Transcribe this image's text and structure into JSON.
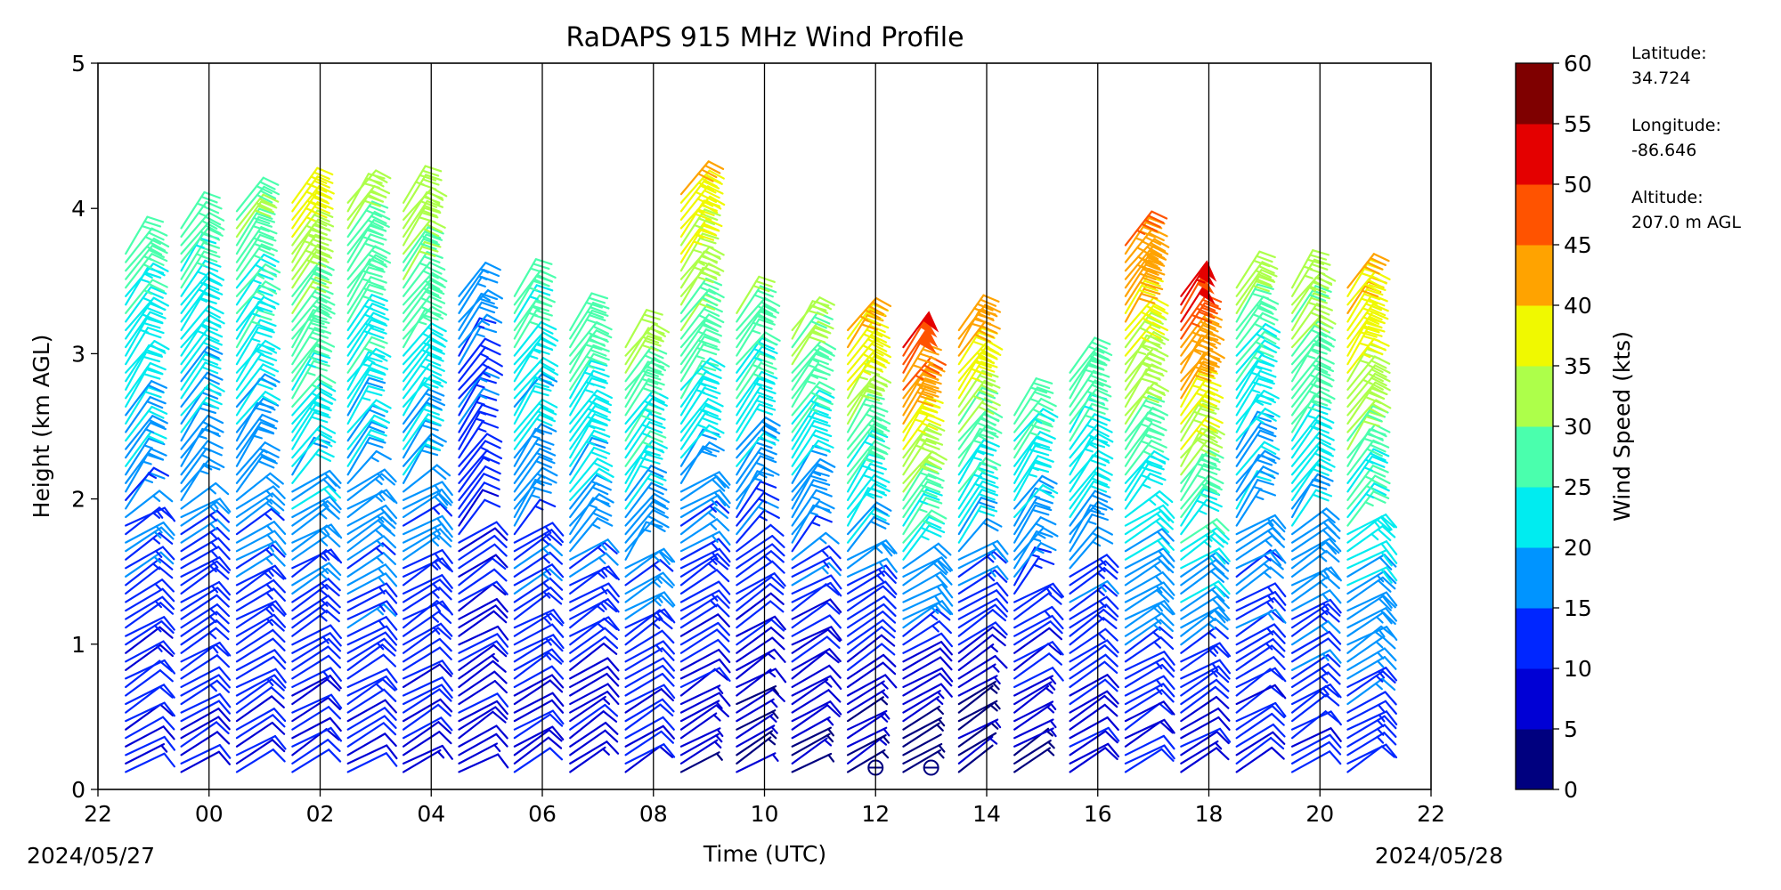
{
  "chart_data": {
    "type": "wind_barb_profile",
    "title": "RaDAPS 915 MHz Wind Profile",
    "xlabel": "Time (UTC)",
    "ylabel": "Height (km AGL)",
    "x_ticks": [
      "22",
      "00",
      "02",
      "04",
      "06",
      "08",
      "10",
      "12",
      "14",
      "16",
      "18",
      "20",
      "22"
    ],
    "y_ticks": [
      "0",
      "1",
      "2",
      "3",
      "4",
      "5"
    ],
    "ylim": [
      0,
      5
    ],
    "start_date": "2024/05/27",
    "end_date": "2024/05/28",
    "colorbar": {
      "label": "Wind Speed (kts)",
      "ticks": [
        "0",
        "5",
        "10",
        "15",
        "20",
        "25",
        "30",
        "35",
        "40",
        "45",
        "50",
        "55",
        "60"
      ],
      "range": [
        0,
        60
      ],
      "colors": [
        "#00007f",
        "#0000d5",
        "#0026ff",
        "#0094ff",
        "#00ecf0",
        "#4affad",
        "#adff4a",
        "#f0f900",
        "#ffa300",
        "#ff5300",
        "#e40000",
        "#7f0000"
      ]
    },
    "station": {
      "latitude_label": "Latitude:",
      "latitude": "34.724",
      "longitude_label": "Longitude:",
      "longitude": "-86.646",
      "altitude_label": "Altitude:",
      "altitude": "207.0 m AGL"
    },
    "profiles": [
      {
        "time": "22:30",
        "top_km": 3.7,
        "low_speed": 9,
        "high_speed": 28
      },
      {
        "time": "23:30",
        "top_km": 3.9,
        "low_speed": 10,
        "high_speed": 27
      },
      {
        "time": "00:30",
        "top_km": 4.0,
        "low_speed": 10,
        "high_speed": 30
      },
      {
        "time": "01:30",
        "top_km": 4.05,
        "low_speed": 9,
        "high_speed": 38
      },
      {
        "time": "02:30",
        "top_km": 4.05,
        "low_speed": 10,
        "high_speed": 32
      },
      {
        "time": "03:30",
        "top_km": 4.05,
        "low_speed": 9,
        "high_speed": 33
      },
      {
        "time": "04:30",
        "top_km": 3.4,
        "low_speed": 8,
        "high_speed": 17
      },
      {
        "time": "05:30",
        "top_km": 3.4,
        "low_speed": 9,
        "high_speed": 27
      },
      {
        "time": "06:30",
        "top_km": 3.2,
        "low_speed": 8,
        "high_speed": 30
      },
      {
        "time": "07:30",
        "top_km": 3.1,
        "low_speed": 9,
        "high_speed": 32
      },
      {
        "time": "08:30",
        "top_km": 4.15,
        "low_speed": 6,
        "high_speed": 40
      },
      {
        "time": "09:30",
        "top_km": 3.3,
        "low_speed": 5,
        "high_speed": 30
      },
      {
        "time": "10:30",
        "top_km": 3.2,
        "low_speed": 5,
        "high_speed": 32
      },
      {
        "time": "11:30",
        "top_km": 3.2,
        "low_speed": 4,
        "high_speed": 42
      },
      {
        "time": "12:30",
        "top_km": 3.1,
        "low_speed": 3,
        "high_speed": 52
      },
      {
        "time": "13:30",
        "top_km": 3.2,
        "low_speed": 3,
        "high_speed": 43
      },
      {
        "time": "14:30",
        "top_km": 2.6,
        "low_speed": 5,
        "high_speed": 29
      },
      {
        "time": "15:30",
        "top_km": 2.9,
        "low_speed": 8,
        "high_speed": 30
      },
      {
        "time": "16:30",
        "top_km": 3.8,
        "low_speed": 9,
        "high_speed": 46
      },
      {
        "time": "17:30",
        "top_km": 3.4,
        "low_speed": 9,
        "high_speed": 52
      },
      {
        "time": "18:30",
        "top_km": 3.5,
        "low_speed": 10,
        "high_speed": 30
      },
      {
        "time": "19:30",
        "top_km": 3.5,
        "low_speed": 11,
        "high_speed": 33
      },
      {
        "time": "20:30",
        "top_km": 3.5,
        "low_speed": 12,
        "high_speed": 42
      }
    ],
    "calm_markers": [
      {
        "time": "12:00",
        "height_km": 0.15
      },
      {
        "time": "13:00",
        "height_km": 0.15
      }
    ]
  }
}
